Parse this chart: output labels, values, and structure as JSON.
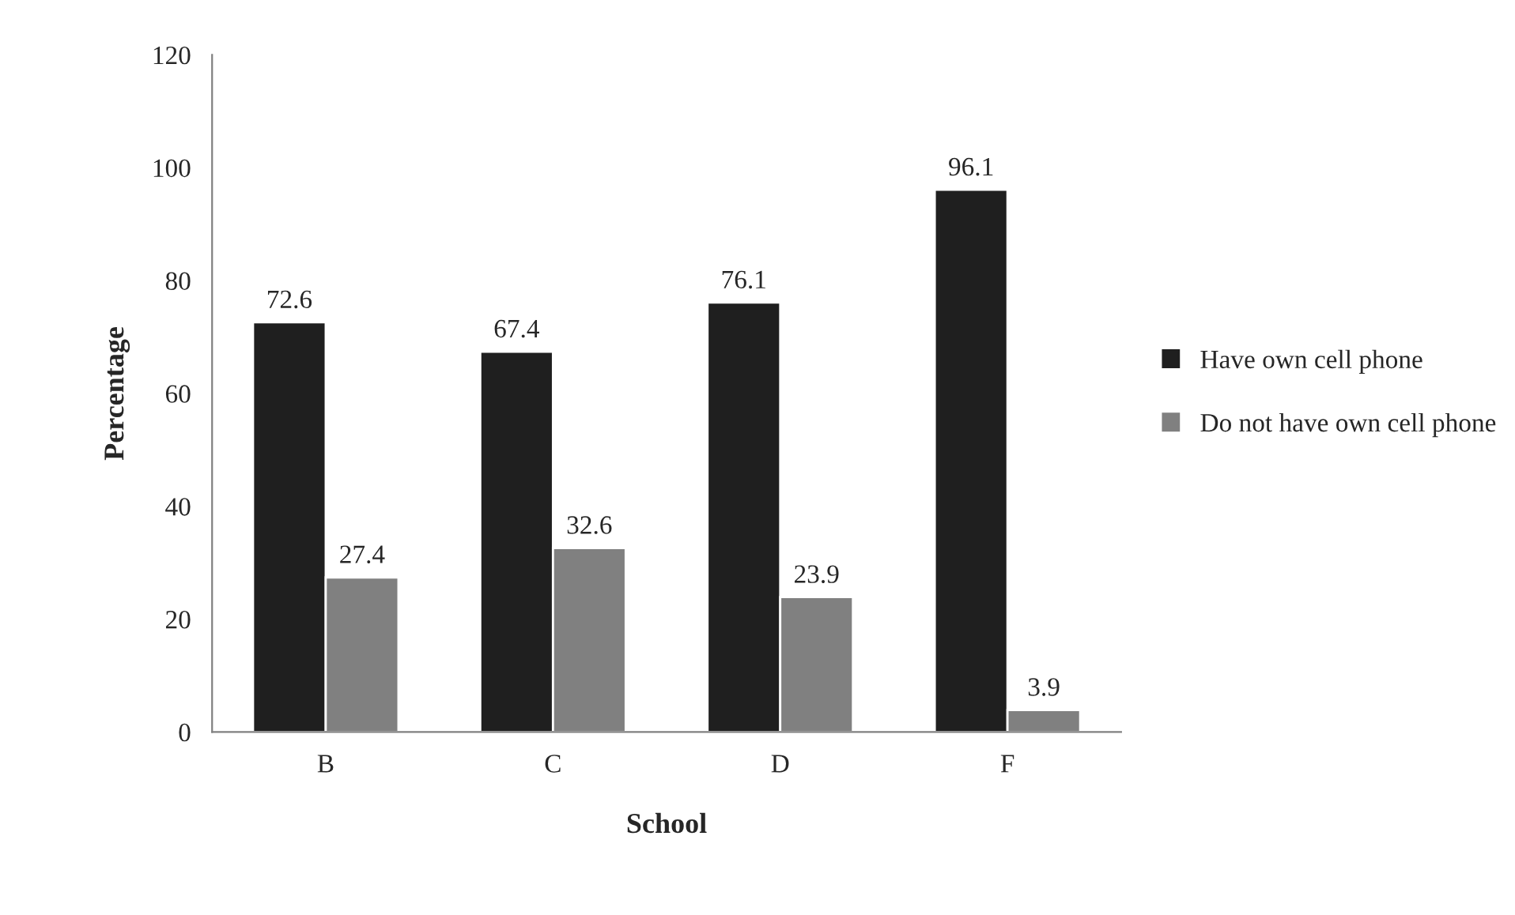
{
  "chart_data": {
    "type": "bar",
    "xlabel": "School",
    "ylabel": "Percentage",
    "categories": [
      "B",
      "C",
      "D",
      "F"
    ],
    "series": [
      {
        "name": "Have own cell phone",
        "color": "#1f1f1f",
        "values": [
          72.6,
          67.4,
          76.1,
          96.1
        ]
      },
      {
        "name": "Do not have own cell phone",
        "color": "#808080",
        "values": [
          27.4,
          32.6,
          23.9,
          3.9
        ]
      }
    ],
    "ylim": [
      0,
      120
    ],
    "yticks": [
      0,
      20,
      40,
      60,
      80,
      100,
      120
    ],
    "data_labels": true,
    "legend": "right",
    "grid": false
  }
}
